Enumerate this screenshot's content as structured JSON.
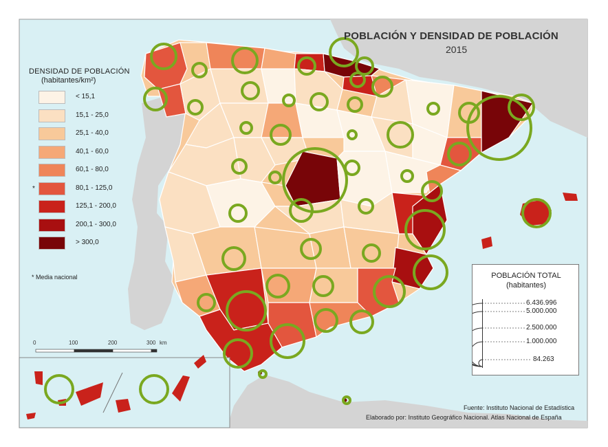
{
  "title": "POBLACIÓN Y DENSIDAD DE POBLACIÓN",
  "year": "2015",
  "legend": {
    "title": "DENSIDAD DE POBLACIÓN",
    "subtitle": "(habitantes/km²)",
    "classes": [
      {
        "label": "< 15,1",
        "color": "#fdf3e6"
      },
      {
        "label": "15,1 - 25,0",
        "color": "#fbe0c2"
      },
      {
        "label": "25,1 - 40,0",
        "color": "#f8c99a"
      },
      {
        "label": "40,1 - 60,0",
        "color": "#f5a877"
      },
      {
        "label": "60,1 - 80,0",
        "color": "#ef8559"
      },
      {
        "label": "80,1 - 125,0",
        "color": "#e3563e",
        "national_mean": true
      },
      {
        "label": "125,1 - 200,0",
        "color": "#c9221b"
      },
      {
        "label": "200,1 - 300,0",
        "color": "#a80f10"
      },
      {
        "label": "> 300,0",
        "color": "#780508"
      }
    ],
    "national_mean_marker": "*",
    "national_mean_note": "* Media nacional"
  },
  "population_legend": {
    "title": "POBLACIÓN TOTAL",
    "subtitle": "(habitantes)",
    "values": [
      "6.436.996",
      "5.000.000",
      "2.500.000",
      "1.000.000",
      "84.263"
    ],
    "circle_color": "#7aa820"
  },
  "scale": {
    "ticks": [
      "0",
      "100",
      "200",
      "300"
    ],
    "unit": "km"
  },
  "source": "Fuente: Instituto Nacional de Estadística",
  "credits": "Elaborado por: Instituto Geográfico Nacional. Atlas Nacional de España",
  "colors": {
    "sea": "#d9f0f4",
    "neighbor_land": "#d4d4d4",
    "border": "#ffffff",
    "circle": "#7aa820"
  }
}
